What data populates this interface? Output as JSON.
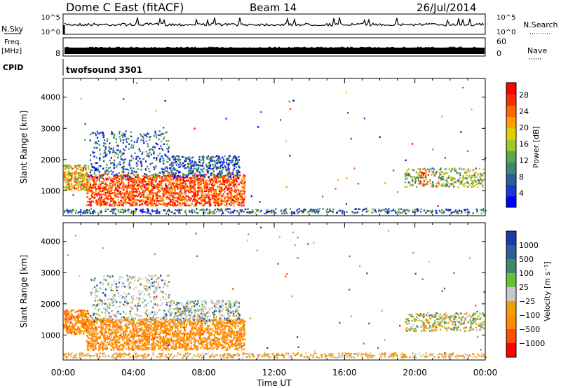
{
  "header": {
    "title": "Dome C East (fitACF)",
    "beam": "Beam 14",
    "date": "26/Jul/2014"
  },
  "top_panels": {
    "nsky_label": "N.Sky",
    "nsky_ticks": [
      "10^5",
      "10^0"
    ],
    "nsearch_label": "N.Search",
    "nsearch_ticks": [
      "10^5",
      "10^0"
    ],
    "freq_label": "Freq.",
    "freq_unit": "[MHz]",
    "freq_ticks": [
      "8"
    ],
    "nave_label": "Nave",
    "nave_ticks": [
      "60",
      "0"
    ],
    "cpid_label": "CPID",
    "cpid_value": "twofsound 3501"
  },
  "chart_data": [
    {
      "type": "heatmap",
      "name": "power",
      "ylabel": "Slant Range [km]",
      "yticks": [
        "1000",
        "2000",
        "3000",
        "4000"
      ],
      "ylim": [
        200,
        4600
      ],
      "xlim": [
        0,
        24
      ],
      "colorbar_label": "Power [dB]",
      "colorbar_ticks": [
        "4",
        "8",
        "12",
        "16",
        "20",
        "24",
        "28"
      ],
      "colors": [
        "#0000ff",
        "#1a3ccc",
        "#2f5f9a",
        "#3d8a6a",
        "#5aa84a",
        "#9ccc2a",
        "#e0d000",
        "#ffa000",
        "#ff6a00",
        "#ff2a00",
        "#ff0000"
      ]
    },
    {
      "type": "heatmap",
      "name": "velocity",
      "ylabel": "Slant Range [km]",
      "yticks": [
        "1000",
        "2000",
        "3000",
        "4000"
      ],
      "ylim": [
        200,
        4600
      ],
      "xlim": [
        0,
        24
      ],
      "xlabel": "Time UT",
      "xticks": [
        "00:00",
        "04:00",
        "08:00",
        "12:00",
        "16:00",
        "20:00",
        "00:00"
      ],
      "colorbar_label": "Velocity [m s⁻¹]",
      "colorbar_ticks": [
        "1000",
        "500",
        "100",
        "25",
        "−25",
        "−100",
        "−500",
        "−1000"
      ],
      "colors": [
        "#1a3ca8",
        "#2f5f9a",
        "#3d8a6a",
        "#6abf3a",
        "#c8c8c8",
        "#f0a000",
        "#ff8c00",
        "#ff5000",
        "#ff0000"
      ]
    }
  ]
}
